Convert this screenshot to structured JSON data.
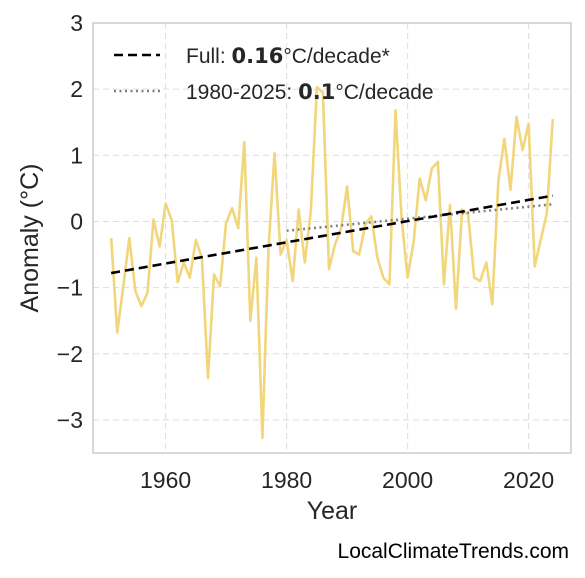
{
  "chart_data": {
    "type": "line",
    "xlabel": "Year",
    "ylabel": "Anomaly (°C)",
    "xlim": [
      1948,
      2027
    ],
    "ylim": [
      -3.5,
      3.0
    ],
    "xticks": [
      1960,
      1980,
      2000,
      2020
    ],
    "yticks": [
      {
        "value": 3,
        "label": "3"
      },
      {
        "value": 2,
        "label": "2"
      },
      {
        "value": 1,
        "label": "1"
      },
      {
        "value": 0,
        "label": "0"
      },
      {
        "value": -1,
        "label": "−1"
      },
      {
        "value": -2,
        "label": "−2"
      },
      {
        "value": -3,
        "label": "−3"
      }
    ],
    "grid": true,
    "legend_position": "top-left",
    "series": [
      {
        "color": "#f2d67c",
        "x": [
          1951,
          1952,
          1953,
          1954,
          1955,
          1956,
          1957,
          1958,
          1959,
          1960,
          1961,
          1962,
          1963,
          1964,
          1965,
          1966,
          1967,
          1968,
          1969,
          1970,
          1971,
          1972,
          1973,
          1974,
          1975,
          1976,
          1977,
          1978,
          1979,
          1980,
          1981,
          1982,
          1983,
          1984,
          1985,
          1986,
          1987,
          1988,
          1989,
          1990,
          1991,
          1992,
          1993,
          1994,
          1995,
          1996,
          1997,
          1998,
          1999,
          2000,
          2001,
          2002,
          2003,
          2004,
          2005,
          2006,
          2007,
          2008,
          2009,
          2010,
          2011,
          2012,
          2013,
          2014,
          2015,
          2016,
          2017,
          2018,
          2019,
          2020,
          2021,
          2022,
          2023,
          2024
        ],
        "y": [
          -0.25,
          -1.68,
          -0.98,
          -0.25,
          -1.05,
          -1.28,
          -1.08,
          0.03,
          -0.38,
          0.27,
          0.02,
          -0.92,
          -0.62,
          -0.85,
          -0.28,
          -0.55,
          -2.37,
          -0.8,
          -0.98,
          -0.02,
          0.2,
          -0.1,
          1.2,
          -1.5,
          -0.55,
          -3.27,
          -0.42,
          1.03,
          -0.5,
          -0.28,
          -0.9,
          0.18,
          -0.62,
          0.15,
          2.03,
          1.95,
          -0.72,
          -0.35,
          -0.1,
          0.53,
          -0.45,
          -0.5,
          -0.05,
          0.08,
          -0.55,
          -0.85,
          -0.95,
          1.68,
          0.05,
          -0.85,
          -0.3,
          0.65,
          0.32,
          0.8,
          0.9,
          -0.95,
          0.25,
          -1.32,
          0.18,
          0.1,
          -0.85,
          -0.9,
          -0.62,
          -1.25,
          0.62,
          1.25,
          0.48,
          1.58,
          1.08,
          1.48,
          -0.68,
          -0.28,
          0.12,
          1.55
        ]
      }
    ],
    "trend_full": {
      "x": [
        1951,
        2024
      ],
      "y": [
        -0.78,
        0.39
      ],
      "color": "#000000"
    },
    "trend_recent": {
      "x": [
        1980,
        2024
      ],
      "y": [
        -0.14,
        0.26
      ],
      "color": "#7f7f7f"
    },
    "legend": [
      {
        "prefix": "Full: ",
        "value": "0.16",
        "suffix": "°C/decade*",
        "style": "dashed",
        "color": "#000000"
      },
      {
        "prefix": "1980-2025: ",
        "value": "0.1",
        "suffix": "°C/decade",
        "style": "dotted",
        "color": "#7f7f7f"
      }
    ]
  },
  "credit": "LocalClimateTrends.com"
}
